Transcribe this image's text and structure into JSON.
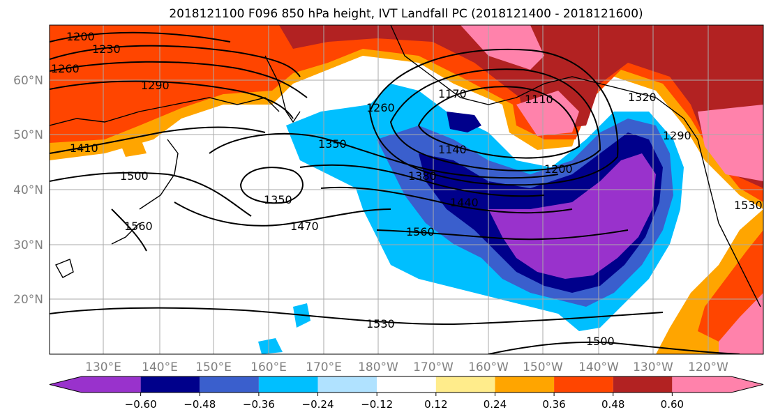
{
  "title": "2018121100 F096 850 hPa height, IVT Landfall PC (2018121400 - 2018121600)",
  "map": {
    "lat_ticks": [
      "60°N",
      "50°N",
      "40°N",
      "30°N",
      "20°N"
    ],
    "lon_ticks": [
      "130°E",
      "140°E",
      "150°E",
      "160°E",
      "170°E",
      "180°W",
      "170°W",
      "160°W",
      "150°W",
      "140°W",
      "130°W",
      "120°W"
    ],
    "contour_labels": [
      "1200",
      "1230",
      "1260",
      "1290",
      "1410",
      "1500",
      "1560",
      "1350",
      "1350",
      "1470",
      "1260",
      "1170",
      "1140",
      "1110",
      "1380",
      "1440",
      "1200",
      "1560",
      "1530",
      "1500",
      "1320",
      "1290",
      "1530"
    ],
    "shading_colors": {
      "neg_060": "#9932cc",
      "neg_048": "#00008b",
      "neg_036": "#3a5fcd",
      "neg_024": "#00bfff",
      "neg_012": "#b0e2ff",
      "neutral": "#ffffff",
      "pos_012": "#ffec8b",
      "pos_024": "#ffa500",
      "pos_036": "#ff4500",
      "pos_048": "#b22222",
      "pos_060": "#ff82ab"
    }
  },
  "colorbar": {
    "ticks": [
      "−0.60",
      "−0.48",
      "−0.36",
      "−0.24",
      "−0.12",
      "0.12",
      "0.24",
      "0.36",
      "0.48",
      "0.60"
    ],
    "levels": [
      -0.6,
      -0.48,
      -0.36,
      -0.24,
      -0.12,
      0.12,
      0.24,
      0.36,
      0.48,
      0.6
    ],
    "colors": [
      "#9932cc",
      "#00008b",
      "#3a5fcd",
      "#00bfff",
      "#b0e2ff",
      "#ffffff",
      "#ffec8b",
      "#ffa500",
      "#ff4500",
      "#b22222",
      "#ff82ab"
    ]
  }
}
